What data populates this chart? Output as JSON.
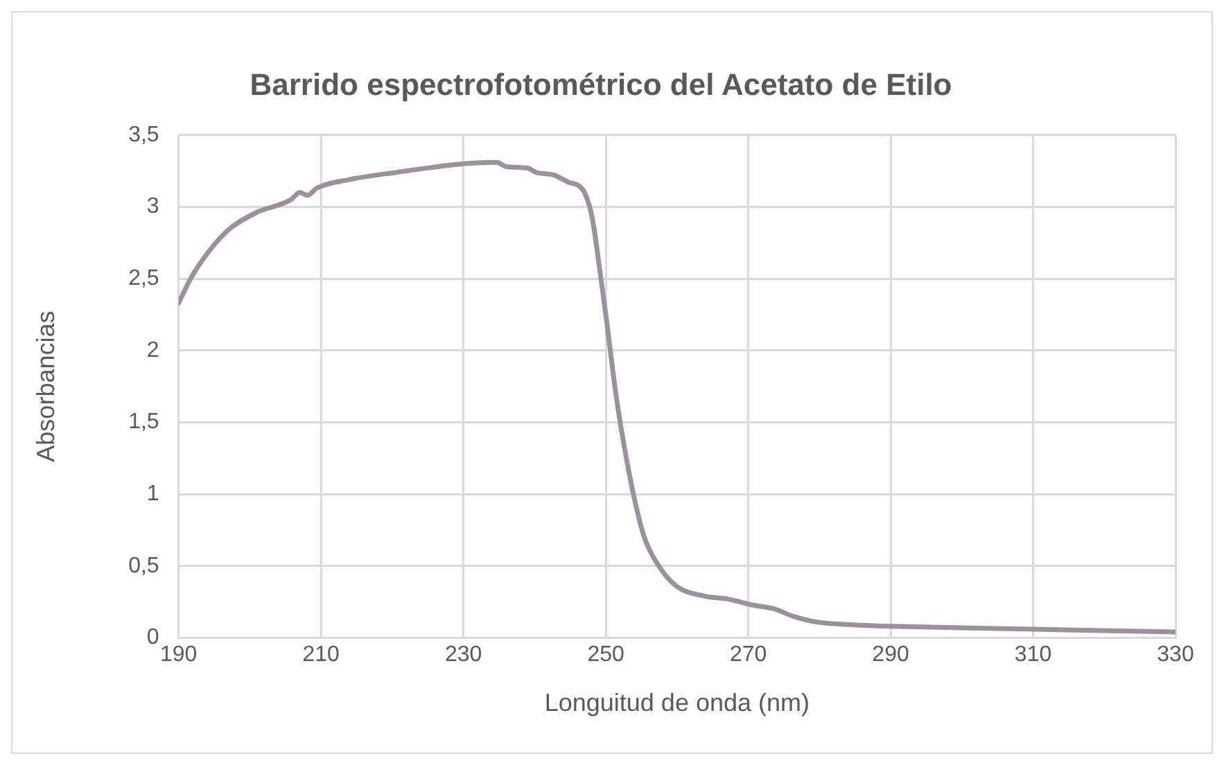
{
  "chart_data": {
    "type": "line",
    "title": "Barrido espectrofotométrico del Acetato de Etilo",
    "xlabel": "Longuitud de onda (nm)",
    "ylabel": "Absorbancias",
    "x": [
      190,
      191.8,
      194.1,
      197,
      200.9,
      205.8,
      207,
      208.1,
      209.4,
      214,
      220.6,
      230.1,
      234.7,
      236,
      239,
      240.2,
      242.8,
      244.8,
      246.1,
      247.1,
      248.1,
      249.1,
      250.1,
      251.4,
      252.7,
      254,
      255.4,
      257.3,
      259.9,
      263.9,
      267.1,
      270.4,
      273.7,
      276.3,
      279.6,
      284.8,
      290,
      310,
      330
    ],
    "series": [
      {
        "color": "#9e8fa0",
        "values": [
          2.33,
          2.51,
          2.68,
          2.84,
          2.96,
          3.05,
          3.1,
          3.08,
          3.13,
          3.19,
          3.24,
          3.3,
          3.31,
          3.28,
          3.27,
          3.24,
          3.22,
          3.17,
          3.15,
          3.09,
          2.92,
          2.58,
          2.21,
          1.7,
          1.3,
          0.97,
          0.7,
          0.51,
          0.36,
          0.29,
          0.27,
          0.23,
          0.2,
          0.15,
          0.11,
          0.09,
          0.08,
          0.06,
          0.04
        ]
      }
    ],
    "xlim": [
      190,
      330
    ],
    "xticks": [
      190,
      210,
      230,
      250,
      270,
      290,
      310,
      330
    ],
    "ylim": [
      0,
      3.5
    ],
    "yticks": [
      0,
      {
        "value": 0.5,
        "label": "0,5"
      },
      1,
      {
        "value": 1.5,
        "label": "1,5"
      },
      2,
      {
        "value": 2.5,
        "label": "2,5"
      },
      3,
      {
        "value": 3.5,
        "label": "3,5"
      }
    ],
    "grid": true,
    "legend": false,
    "marker": "none",
    "line_style": "solid"
  }
}
